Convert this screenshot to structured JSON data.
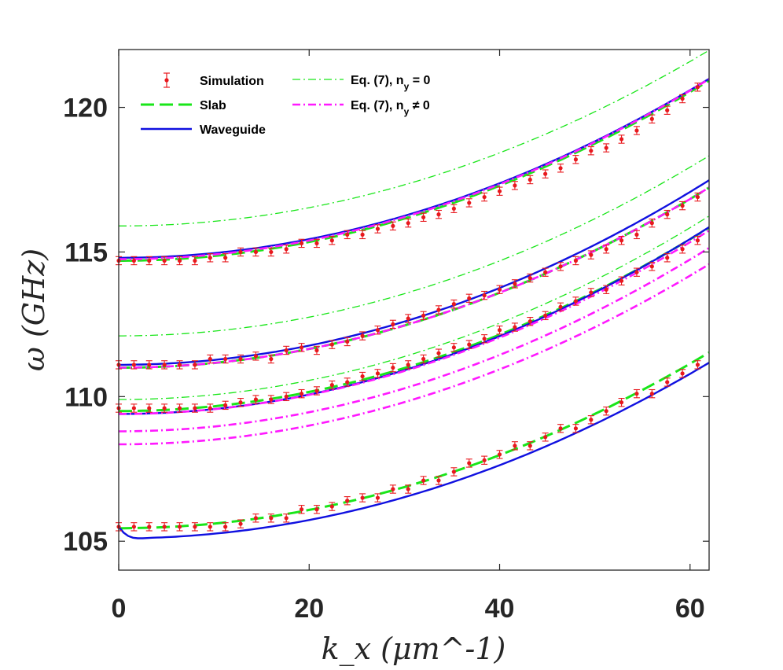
{
  "chart_data": {
    "type": "line",
    "xlabel": "k_x (μm^-1)",
    "ylabel": "ω (GHz)",
    "xlim": [
      0,
      62
    ],
    "ylim": [
      104,
      122
    ],
    "xticks": [
      "0",
      "20",
      "40",
      "60"
    ],
    "yticks": [
      "105",
      "110",
      "115",
      "120"
    ],
    "xtick_values": [
      0,
      20,
      40,
      60
    ],
    "ytick_values": [
      105,
      110,
      115,
      120
    ],
    "legend": {
      "position": "top-left",
      "entries": [
        {
          "label": "Simulation",
          "style": "markers-errorbars",
          "color": "#e8181d"
        },
        {
          "label": "Slab",
          "style": "dashed",
          "color": "#19e619"
        },
        {
          "label": "Waveguide",
          "style": "solid",
          "color": "#1010e0"
        },
        {
          "label": "Eq. (7), n",
          "subscript": "y",
          "suffix": " = 0",
          "style": "dashdot-thin",
          "color": "#19e619"
        },
        {
          "label": "Eq. (7), n",
          "subscript": "y",
          "suffix": " ≠ 0",
          "style": "dashdot-thick",
          "color": "#ff19ff"
        }
      ]
    },
    "series": [
      {
        "name": "Simulation mode 1",
        "kind": "scatter",
        "color": "#e8181d",
        "error": 0.14,
        "x": [
          0,
          1.6,
          3.2,
          4.8,
          6.4,
          8,
          9.6,
          11.2,
          12.8,
          14.4,
          16,
          17.6,
          19.2,
          20.8,
          22.4,
          24,
          25.6,
          27.2,
          28.8,
          30.4,
          32,
          33.6,
          35.2,
          36.8,
          38.4,
          40,
          41.6,
          43.2,
          44.8,
          46.4,
          48,
          49.6,
          51.2,
          52.8,
          54.4,
          56,
          57.6,
          59.2,
          60.8
        ],
        "y": [
          105.5,
          105.5,
          105.5,
          105.5,
          105.5,
          105.5,
          105.5,
          105.5,
          105.6,
          105.8,
          105.8,
          105.8,
          106.1,
          106.1,
          106.2,
          106.4,
          106.5,
          106.5,
          106.8,
          106.8,
          107.1,
          107.1,
          107.4,
          107.7,
          107.8,
          108.0,
          108.3,
          108.3,
          108.6,
          108.9,
          108.9,
          109.2,
          109.5,
          109.8,
          110.1,
          110.1,
          110.5,
          110.8,
          111.1
        ]
      },
      {
        "name": "Simulation mode 2",
        "kind": "scatter",
        "color": "#e8181d",
        "error": 0.14,
        "x": [
          0,
          1.6,
          3.2,
          4.8,
          6.4,
          8,
          9.6,
          11.2,
          12.8,
          14.4,
          16,
          17.6,
          19.2,
          20.8,
          22.4,
          24,
          25.6,
          27.2,
          28.8,
          30.4,
          32,
          33.6,
          35.2,
          36.8,
          38.4,
          40,
          41.6,
          43.2,
          44.8,
          46.4,
          48,
          49.6,
          51.2,
          52.8,
          54.4,
          56,
          57.6,
          59.2,
          60.8
        ],
        "y": [
          109.6,
          109.6,
          109.6,
          109.6,
          109.6,
          109.6,
          109.6,
          109.7,
          109.8,
          109.9,
          109.9,
          110.0,
          110.1,
          110.2,
          110.4,
          110.5,
          110.7,
          110.8,
          111.0,
          111.1,
          111.3,
          111.5,
          111.7,
          111.8,
          112.0,
          112.3,
          112.4,
          112.6,
          112.8,
          113.1,
          113.3,
          113.6,
          113.7,
          114.0,
          114.3,
          114.5,
          114.8,
          115.1,
          115.4
        ]
      },
      {
        "name": "Simulation mode 3",
        "kind": "scatter",
        "color": "#e8181d",
        "error": 0.14,
        "x": [
          0,
          1.6,
          3.2,
          4.8,
          6.4,
          8,
          9.6,
          11.2,
          12.8,
          14.4,
          16,
          17.6,
          19.2,
          20.8,
          22.4,
          24,
          25.6,
          27.2,
          28.8,
          30.4,
          32,
          33.6,
          35.2,
          36.8,
          38.4,
          40,
          41.6,
          43.2,
          44.8,
          46.4,
          48,
          49.6,
          51.2,
          52.8,
          54.4,
          56,
          57.6,
          59.2,
          60.8
        ],
        "y": [
          111.1,
          111.1,
          111.1,
          111.1,
          111.1,
          111.1,
          111.3,
          111.3,
          111.3,
          111.4,
          111.3,
          111.6,
          111.7,
          111.6,
          111.8,
          111.9,
          112.1,
          112.3,
          112.5,
          112.7,
          112.8,
          113.0,
          113.2,
          113.4,
          113.5,
          113.7,
          113.9,
          114.1,
          114.3,
          114.5,
          114.7,
          114.9,
          115.1,
          115.4,
          115.6,
          116.0,
          116.3,
          116.6,
          116.9
        ]
      },
      {
        "name": "Simulation mode 4",
        "kind": "scatter",
        "color": "#e8181d",
        "error": 0.14,
        "x": [
          0,
          1.6,
          3.2,
          4.8,
          6.4,
          8,
          9.6,
          11.2,
          12.8,
          14.4,
          16,
          17.6,
          19.2,
          20.8,
          22.4,
          24,
          25.6,
          27.2,
          28.8,
          30.4,
          32,
          33.6,
          35.2,
          36.8,
          38.4,
          40,
          41.6,
          43.2,
          44.8,
          46.4,
          48,
          49.6,
          51.2,
          52.8,
          54.4,
          56,
          57.6,
          59.2,
          60.8
        ],
        "y": [
          114.7,
          114.7,
          114.7,
          114.7,
          114.7,
          114.7,
          114.8,
          114.8,
          115.0,
          115.0,
          115.0,
          115.1,
          115.3,
          115.3,
          115.4,
          115.6,
          115.6,
          115.8,
          115.9,
          116.0,
          116.2,
          116.3,
          116.5,
          116.7,
          116.9,
          117.1,
          117.3,
          117.5,
          117.7,
          117.9,
          118.2,
          118.5,
          118.6,
          118.9,
          119.2,
          119.6,
          119.9,
          120.3,
          120.7
        ]
      },
      {
        "name": "Slab mode 1",
        "kind": "dashed",
        "color": "#19e619",
        "width": 3,
        "c0": 105.45,
        "c2": 0.00158
      },
      {
        "name": "Slab mode 2",
        "kind": "dashed",
        "color": "#19e619",
        "width": 3,
        "c0": 109.5,
        "c2": 0.00165
      },
      {
        "name": "Slab mode 3",
        "kind": "dashed",
        "color": "#19e619",
        "width": 3,
        "c0": 111.0,
        "c2": 0.00162
      },
      {
        "name": "Slab mode 4",
        "kind": "dashed",
        "color": "#19e619",
        "width": 3,
        "c0": 114.7,
        "c2": 0.00162
      },
      {
        "name": "Waveguide mode 1",
        "kind": "solid",
        "color": "#1010e0",
        "width": 2.4,
        "c0": 105.1,
        "c2": 0.00158,
        "x": [
          0,
          0.5,
          1,
          1.5,
          2,
          2.5,
          3
        ],
        "y": [
          105.5,
          105.3,
          105.18,
          105.12,
          105.1,
          105.1,
          105.11
        ]
      },
      {
        "name": "Waveguide mode 2",
        "kind": "solid",
        "color": "#1010e0",
        "width": 2.4,
        "c0": 109.4,
        "c2": 0.00168
      },
      {
        "name": "Waveguide mode 3",
        "kind": "solid",
        "color": "#1010e0",
        "width": 2.4,
        "c0": 111.1,
        "c2": 0.00166
      },
      {
        "name": "Waveguide mode 4",
        "kind": "solid",
        "color": "#1010e0",
        "width": 2.4,
        "c0": 114.8,
        "c2": 0.00161
      },
      {
        "name": "Eq. (7), n_y = 0 mode 1",
        "kind": "dashdot-thin",
        "color": "#19e619",
        "width": 1.3,
        "c0": 109.9,
        "c2": 0.00165
      },
      {
        "name": "Eq. (7), n_y = 0 mode 2",
        "kind": "dashdot-thin",
        "color": "#19e619",
        "width": 1.3,
        "c0": 112.1,
        "c2": 0.00162
      },
      {
        "name": "Eq. (7), n_y = 0 mode 3",
        "kind": "dashdot-thin",
        "color": "#19e619",
        "width": 1.3,
        "c0": 115.9,
        "c2": 0.00158
      },
      {
        "name": "Eq. (7), n_y ≠ 0 mode 1",
        "kind": "dashdot-thick",
        "color": "#ff19ff",
        "width": 2.6,
        "c0": 108.35,
        "c2": 0.00162
      },
      {
        "name": "Eq. (7), n_y ≠ 0 mode 2",
        "kind": "dashdot-thick",
        "color": "#ff19ff",
        "width": 2.6,
        "c0": 108.8,
        "c2": 0.00165
      },
      {
        "name": "Eq. (7), n_y ≠ 0 mode 3",
        "kind": "dashdot-thick",
        "color": "#ff19ff",
        "width": 2.6,
        "c0": 109.4,
        "c2": 0.00165
      },
      {
        "name": "Eq. (7), n_y ≠ 0 mode 4",
        "kind": "dashdot-thick",
        "color": "#ff19ff",
        "width": 2.6,
        "c0": 111.0,
        "c2": 0.00162
      },
      {
        "name": "Eq. (7), n_y ≠ 0 mode 5",
        "kind": "dashdot-thick",
        "color": "#ff19ff",
        "width": 2.6,
        "c0": 114.75,
        "c2": 0.00162
      }
    ]
  }
}
